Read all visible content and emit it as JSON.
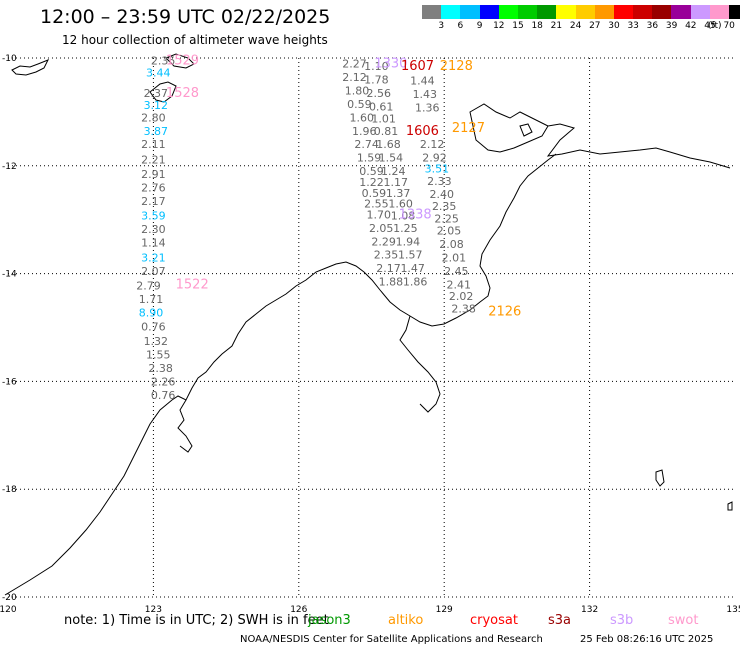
{
  "header": {
    "title": "12:00 – 23:59 UTC 02/22/2025",
    "subtitle": "12 hour collection of altimeter wave heights"
  },
  "colorbar": {
    "colors": [
      "#7f7f7f",
      "#00ffff",
      "#00bfff",
      "#0000ff",
      "#00ff00",
      "#00cc00",
      "#009900",
      "#ffff00",
      "#ffcc00",
      "#ff9900",
      "#ff0000",
      "#cc0000",
      "#990000",
      "#990099",
      "#cc99ff",
      "#ff99cc",
      "#000000"
    ],
    "ticks": [
      "3",
      "6",
      "9",
      "12",
      "15",
      "18",
      "21",
      "24",
      "27",
      "30",
      "33",
      "36",
      "39",
      "42",
      "45",
      "70"
    ],
    "unit": "(ft)"
  },
  "map": {
    "lon_ticks": [
      "120",
      "123",
      "126",
      "129",
      "132",
      "135"
    ],
    "lat_ticks": [
      "-10",
      "-12",
      "-14",
      "-16",
      "-18",
      "-20"
    ],
    "track_labels": [
      {
        "text": "2.35",
        "lon": 123.2,
        "lat": -10.05,
        "color": "#666666"
      },
      {
        "text": "1529",
        "lon": 123.6,
        "lat": -10.05,
        "color": "#ff99cc"
      },
      {
        "text": "3.44",
        "lon": 123.1,
        "lat": -10.27,
        "color": "#00bfff"
      },
      {
        "text": "2.37",
        "lon": 123.05,
        "lat": -10.65,
        "color": "#666666"
      },
      {
        "text": "1528",
        "lon": 123.6,
        "lat": -10.65,
        "color": "#ff99cc"
      },
      {
        "text": "3.12",
        "lon": 123.05,
        "lat": -10.87,
        "color": "#00bfff"
      },
      {
        "text": "2.80",
        "lon": 123.0,
        "lat": -11.1,
        "color": "#666666"
      },
      {
        "text": "3.87",
        "lon": 123.05,
        "lat": -11.35,
        "color": "#00bfff"
      },
      {
        "text": "2.11",
        "lon": 123.0,
        "lat": -11.6,
        "color": "#666666"
      },
      {
        "text": "2.21",
        "lon": 123.0,
        "lat": -11.88,
        "color": "#666666"
      },
      {
        "text": "2.91",
        "lon": 123.0,
        "lat": -12.15,
        "color": "#666666"
      },
      {
        "text": "2.76",
        "lon": 123.0,
        "lat": -12.4,
        "color": "#666666"
      },
      {
        "text": "2.17",
        "lon": 123.0,
        "lat": -12.65,
        "color": "#666666"
      },
      {
        "text": "3.59",
        "lon": 123.0,
        "lat": -12.92,
        "color": "#00bfff"
      },
      {
        "text": "2.30",
        "lon": 123.0,
        "lat": -13.17,
        "color": "#666666"
      },
      {
        "text": "1.14",
        "lon": 123.0,
        "lat": -13.42,
        "color": "#666666"
      },
      {
        "text": "3.21",
        "lon": 123.0,
        "lat": -13.7,
        "color": "#00bfff"
      },
      {
        "text": "2.07",
        "lon": 123.0,
        "lat": -13.95,
        "color": "#666666"
      },
      {
        "text": "2.79",
        "lon": 122.9,
        "lat": -14.22,
        "color": "#666666"
      },
      {
        "text": "1522",
        "lon": 123.8,
        "lat": -14.2,
        "color": "#ff99cc"
      },
      {
        "text": "1.71",
        "lon": 122.95,
        "lat": -14.47,
        "color": "#666666"
      },
      {
        "text": "8.90",
        "lon": 122.95,
        "lat": -14.72,
        "color": "#00bfff"
      },
      {
        "text": "0.76",
        "lon": 123.0,
        "lat": -14.98,
        "color": "#666666"
      },
      {
        "text": "1.32",
        "lon": 123.05,
        "lat": -15.25,
        "color": "#666666"
      },
      {
        "text": "1.55",
        "lon": 123.1,
        "lat": -15.5,
        "color": "#666666"
      },
      {
        "text": "2.38",
        "lon": 123.15,
        "lat": -15.75,
        "color": "#666666"
      },
      {
        "text": "2.26",
        "lon": 123.2,
        "lat": -16.0,
        "color": "#666666"
      },
      {
        "text": "0.76",
        "lon": 123.2,
        "lat": -16.25,
        "color": "#666666"
      },
      {
        "text": "2.27",
        "lon": 127.15,
        "lat": -10.1,
        "color": "#666666"
      },
      {
        "text": "2.12",
        "lon": 127.15,
        "lat": -10.35,
        "color": "#666666"
      },
      {
        "text": "1.80",
        "lon": 127.2,
        "lat": -10.6,
        "color": "#666666"
      },
      {
        "text": "0.59",
        "lon": 127.25,
        "lat": -10.85,
        "color": "#666666"
      },
      {
        "text": "1.60",
        "lon": 127.3,
        "lat": -11.1,
        "color": "#666666"
      },
      {
        "text": "1.96",
        "lon": 127.35,
        "lat": -11.35,
        "color": "#666666"
      },
      {
        "text": "2.74",
        "lon": 127.4,
        "lat": -11.6,
        "color": "#666666"
      },
      {
        "text": "1.59",
        "lon": 127.45,
        "lat": -11.85,
        "color": "#666666"
      },
      {
        "text": "0.59",
        "lon": 127.5,
        "lat": -12.1,
        "color": "#666666"
      },
      {
        "text": "1.22",
        "lon": 127.5,
        "lat": -12.3,
        "color": "#666666"
      },
      {
        "text": "0.59",
        "lon": 127.55,
        "lat": -12.5,
        "color": "#666666"
      },
      {
        "text": "2.55",
        "lon": 127.6,
        "lat": -12.7,
        "color": "#666666"
      },
      {
        "text": "1.70",
        "lon": 127.65,
        "lat": -12.9,
        "color": "#666666"
      },
      {
        "text": "2.05",
        "lon": 127.7,
        "lat": -13.15,
        "color": "#666666"
      },
      {
        "text": "2.29",
        "lon": 127.75,
        "lat": -13.4,
        "color": "#666666"
      },
      {
        "text": "2.35",
        "lon": 127.8,
        "lat": -13.65,
        "color": "#666666"
      },
      {
        "text": "2.17",
        "lon": 127.85,
        "lat": -13.9,
        "color": "#666666"
      },
      {
        "text": "1.88",
        "lon": 127.9,
        "lat": -14.15,
        "color": "#666666"
      },
      {
        "text": "1.10",
        "lon": 127.6,
        "lat": -10.15,
        "color": "#666666"
      },
      {
        "text": "1330",
        "lon": 127.9,
        "lat": -10.1,
        "color": "#cc99ff"
      },
      {
        "text": "1.78",
        "lon": 127.6,
        "lat": -10.4,
        "color": "#666666"
      },
      {
        "text": "2.56",
        "lon": 127.65,
        "lat": -10.65,
        "color": "#666666"
      },
      {
        "text": "0.61",
        "lon": 127.7,
        "lat": -10.9,
        "color": "#666666"
      },
      {
        "text": "1.01",
        "lon": 127.75,
        "lat": -11.12,
        "color": "#666666"
      },
      {
        "text": "0.81",
        "lon": 127.8,
        "lat": -11.35,
        "color": "#666666"
      },
      {
        "text": "1.68",
        "lon": 127.85,
        "lat": -11.6,
        "color": "#666666"
      },
      {
        "text": "1.54",
        "lon": 127.9,
        "lat": -11.85,
        "color": "#666666"
      },
      {
        "text": "1.24",
        "lon": 127.95,
        "lat": -12.1,
        "color": "#666666"
      },
      {
        "text": "1.17",
        "lon": 128.0,
        "lat": -12.3,
        "color": "#666666"
      },
      {
        "text": "1.37",
        "lon": 128.05,
        "lat": -12.5,
        "color": "#666666"
      },
      {
        "text": "1.60",
        "lon": 128.1,
        "lat": -12.7,
        "color": "#666666"
      },
      {
        "text": "1.08",
        "lon": 128.15,
        "lat": -12.92,
        "color": "#666666"
      },
      {
        "text": "1.25",
        "lon": 128.2,
        "lat": -13.15,
        "color": "#666666"
      },
      {
        "text": "1.94",
        "lon": 128.25,
        "lat": -13.4,
        "color": "#666666"
      },
      {
        "text": "1.57",
        "lon": 128.3,
        "lat": -13.65,
        "color": "#666666"
      },
      {
        "text": "1.47",
        "lon": 128.35,
        "lat": -13.9,
        "color": "#666666"
      },
      {
        "text": "1.86",
        "lon": 128.4,
        "lat": -14.15,
        "color": "#666666"
      },
      {
        "text": "1338",
        "lon": 128.4,
        "lat": -12.9,
        "color": "#cc99ff"
      },
      {
        "text": "1607",
        "lon": 128.45,
        "lat": -10.15,
        "color": "#cc0000"
      },
      {
        "text": "2128",
        "lon": 129.25,
        "lat": -10.15,
        "color": "#ff9900"
      },
      {
        "text": "1.44",
        "lon": 128.55,
        "lat": -10.42,
        "color": "#666666"
      },
      {
        "text": "1.43",
        "lon": 128.6,
        "lat": -10.67,
        "color": "#666666"
      },
      {
        "text": "1.36",
        "lon": 128.65,
        "lat": -10.92,
        "color": "#666666"
      },
      {
        "text": "1606",
        "lon": 128.55,
        "lat": -11.35,
        "color": "#cc0000"
      },
      {
        "text": "2127",
        "lon": 129.5,
        "lat": -11.3,
        "color": "#ff9900"
      },
      {
        "text": "2.12",
        "lon": 128.75,
        "lat": -11.6,
        "color": "#666666"
      },
      {
        "text": "2.92",
        "lon": 128.8,
        "lat": -11.85,
        "color": "#666666"
      },
      {
        "text": "3.51",
        "lon": 128.85,
        "lat": -12.05,
        "color": "#00bfff"
      },
      {
        "text": "2.33",
        "lon": 128.9,
        "lat": -12.28,
        "color": "#666666"
      },
      {
        "text": "2.40",
        "lon": 128.95,
        "lat": -12.52,
        "color": "#666666"
      },
      {
        "text": "2.35",
        "lon": 129.0,
        "lat": -12.75,
        "color": "#666666"
      },
      {
        "text": "2.25",
        "lon": 129.05,
        "lat": -12.98,
        "color": "#666666"
      },
      {
        "text": "2.05",
        "lon": 129.1,
        "lat": -13.2,
        "color": "#666666"
      },
      {
        "text": "2.08",
        "lon": 129.15,
        "lat": -13.45,
        "color": "#666666"
      },
      {
        "text": "2.01",
        "lon": 129.2,
        "lat": -13.7,
        "color": "#666666"
      },
      {
        "text": "2.45",
        "lon": 129.25,
        "lat": -13.95,
        "color": "#666666"
      },
      {
        "text": "2.41",
        "lon": 129.3,
        "lat": -14.2,
        "color": "#666666"
      },
      {
        "text": "2.02",
        "lon": 129.35,
        "lat": -14.42,
        "color": "#666666"
      },
      {
        "text": "2.38",
        "lon": 129.4,
        "lat": -14.65,
        "color": "#666666"
      },
      {
        "text": "2126",
        "lon": 130.25,
        "lat": -14.7,
        "color": "#ff9900"
      }
    ]
  },
  "footer": {
    "note": "note:  1) Time is in UTC; 2) SWH is in feet",
    "satellites": [
      {
        "name": "jason3",
        "color": "#009900"
      },
      {
        "name": "altiko",
        "color": "#ff9900"
      },
      {
        "name": "cryosat",
        "color": "#ff0000"
      },
      {
        "name": "s3a",
        "color": "#990000"
      },
      {
        "name": "s3b",
        "color": "#cc99ff"
      },
      {
        "name": "swot",
        "color": "#ff99cc"
      }
    ],
    "credit": "NOAA/NESDIS Center for Satellite Applications and Research",
    "timestamp": "25 Feb 08:26:16 UTC 2025"
  }
}
